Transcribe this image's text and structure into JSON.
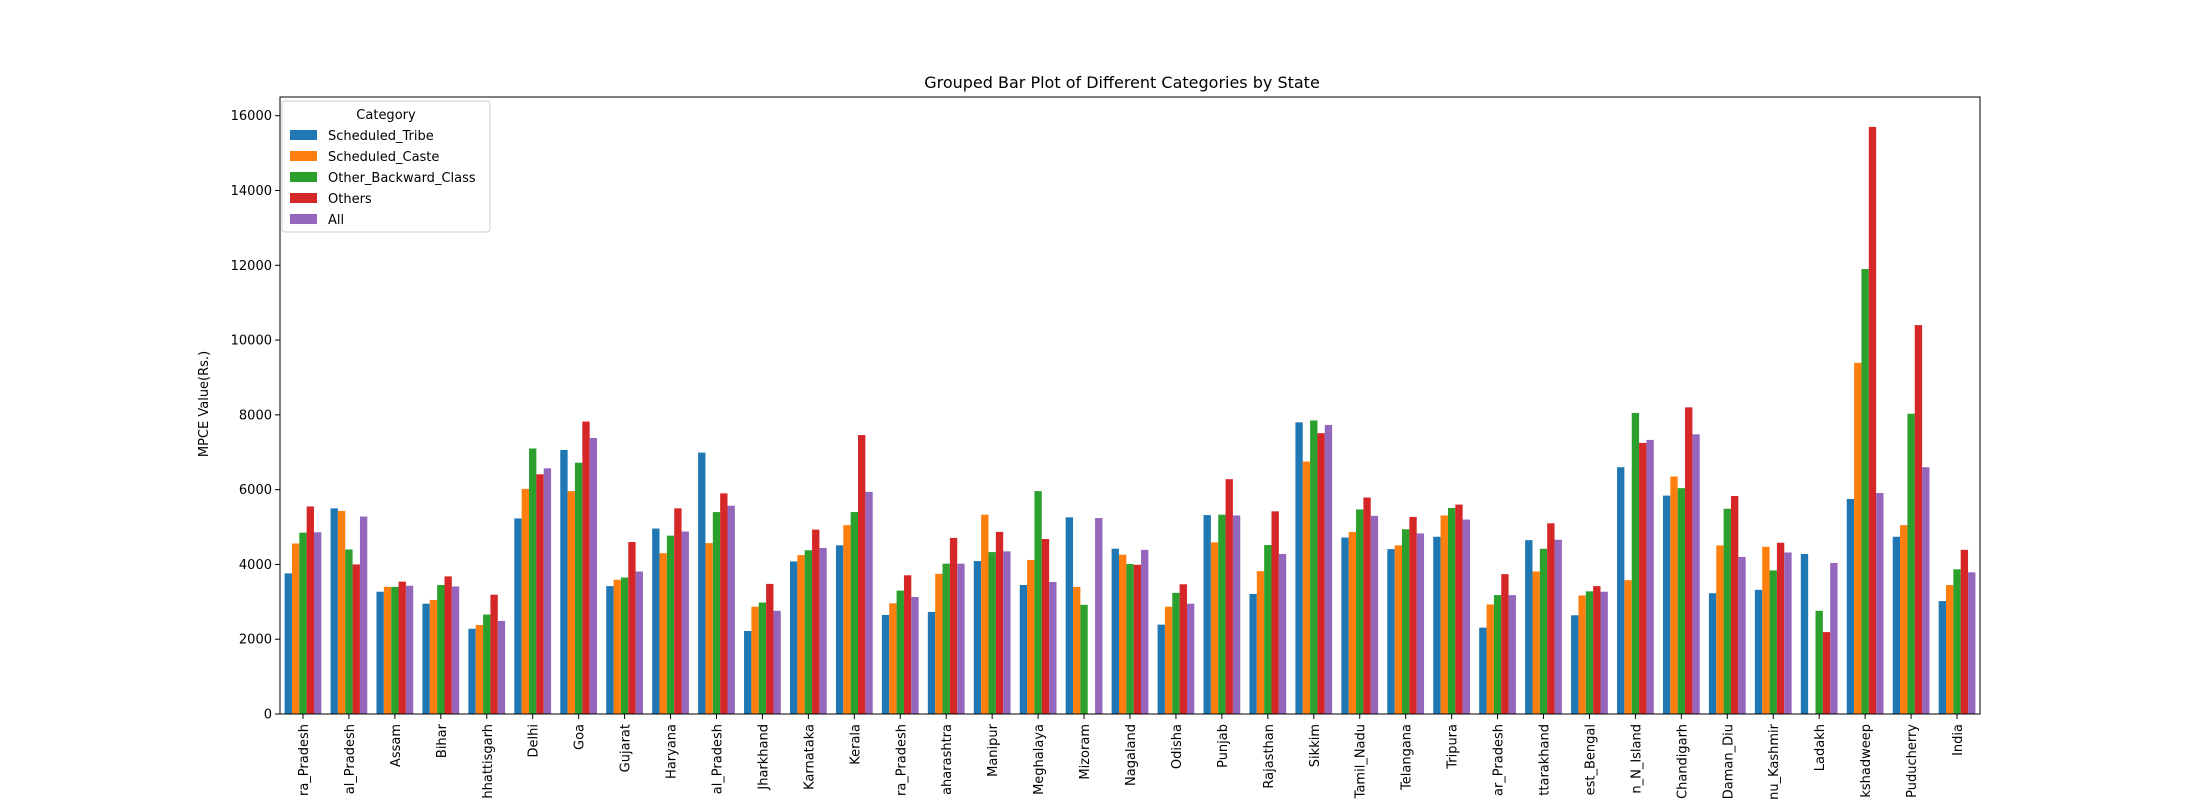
{
  "chart_data": {
    "type": "bar",
    "title": "Grouped Bar Plot of Different Categories by State",
    "xlabel": "",
    "ylabel": "MPCE Value(Rs.)",
    "ylim": [
      0,
      16500
    ],
    "yticks": [
      0,
      2000,
      4000,
      6000,
      8000,
      10000,
      12000,
      14000,
      16000
    ],
    "legend_title": "Category",
    "legend_position": "top-left",
    "categories": [
      "ra_Pradesh",
      "al_Pradesh",
      "Assam",
      "Bihar",
      "hhattisgarh",
      "Delhi",
      "Goa",
      "Gujarat",
      "Haryana",
      "al_Pradesh",
      "Jharkhand",
      "Karnataka",
      "Kerala",
      "ra_Pradesh",
      "aharashtra",
      "Manipur",
      "Meghalaya",
      "Mizoram",
      "Nagaland",
      "Odisha",
      "Punjab",
      "Rajasthan",
      "Sikkim",
      "Tamil_Nadu",
      "Telangana",
      "Tripura",
      "ar_Pradesh",
      "ttarakhand",
      "est_Bengal",
      "n_N_Island",
      "Chandigarh",
      "Daman_Diu",
      "nu_Kashmir",
      "Ladakh",
      "kshadweep",
      "Puducherry",
      "India"
    ],
    "series": [
      {
        "name": "Scheduled_Tribe",
        "color": "#1f77b4",
        "values": [
          3760,
          5500,
          3270,
          2950,
          2280,
          5230,
          7060,
          3420,
          4960,
          6990,
          2220,
          4080,
          4510,
          2650,
          2730,
          4090,
          3450,
          5260,
          4420,
          2390,
          5320,
          3210,
          7800,
          4720,
          4410,
          4740,
          2310,
          4650,
          2640,
          6600,
          5840,
          3230,
          3320,
          4280,
          5750,
          4740,
          3020
        ]
      },
      {
        "name": "Scheduled_Caste",
        "color": "#ff7f0e",
        "values": [
          4560,
          5430,
          3400,
          3050,
          2380,
          6020,
          5960,
          3590,
          4300,
          4570,
          2870,
          4250,
          5050,
          2960,
          3750,
          5330,
          4120,
          3400,
          4260,
          2870,
          4590,
          3820,
          6750,
          4870,
          4510,
          5310,
          2930,
          3810,
          3170,
          3580,
          6350,
          4510,
          4470,
          0,
          9390,
          5050,
          3450
        ]
      },
      {
        "name": "Other_Backward_Class",
        "color": "#2ca02c",
        "values": [
          4850,
          4400,
          3400,
          3450,
          2660,
          7100,
          6720,
          3650,
          4770,
          5400,
          2980,
          4380,
          5400,
          3300,
          4020,
          4330,
          5960,
          2920,
          4010,
          3240,
          5330,
          4520,
          7850,
          5470,
          4940,
          5510,
          3180,
          4420,
          3280,
          8050,
          6040,
          5490,
          3840,
          2760,
          11900,
          8030,
          3870
        ]
      },
      {
        "name": "Others",
        "color": "#d62728",
        "values": [
          5550,
          4000,
          3540,
          3680,
          3190,
          6410,
          7820,
          4600,
          5500,
          5900,
          3480,
          4930,
          7460,
          3710,
          4710,
          4870,
          4680,
          0,
          3990,
          3470,
          6280,
          5420,
          7510,
          5790,
          5270,
          5600,
          3740,
          5100,
          3420,
          7250,
          8200,
          5830,
          4580,
          2190,
          15700,
          10400,
          4390
        ]
      },
      {
        "name": "All",
        "color": "#9467bd",
        "values": [
          4860,
          5280,
          3430,
          3410,
          2490,
          6570,
          7380,
          3810,
          4880,
          5570,
          2760,
          4440,
          5940,
          3130,
          4020,
          4350,
          3530,
          5240,
          4390,
          2950,
          5310,
          4280,
          7730,
          5300,
          4830,
          5200,
          3180,
          4660,
          3270,
          7330,
          7480,
          4200,
          4320,
          4040,
          5910,
          6600,
          3790
        ]
      }
    ]
  }
}
